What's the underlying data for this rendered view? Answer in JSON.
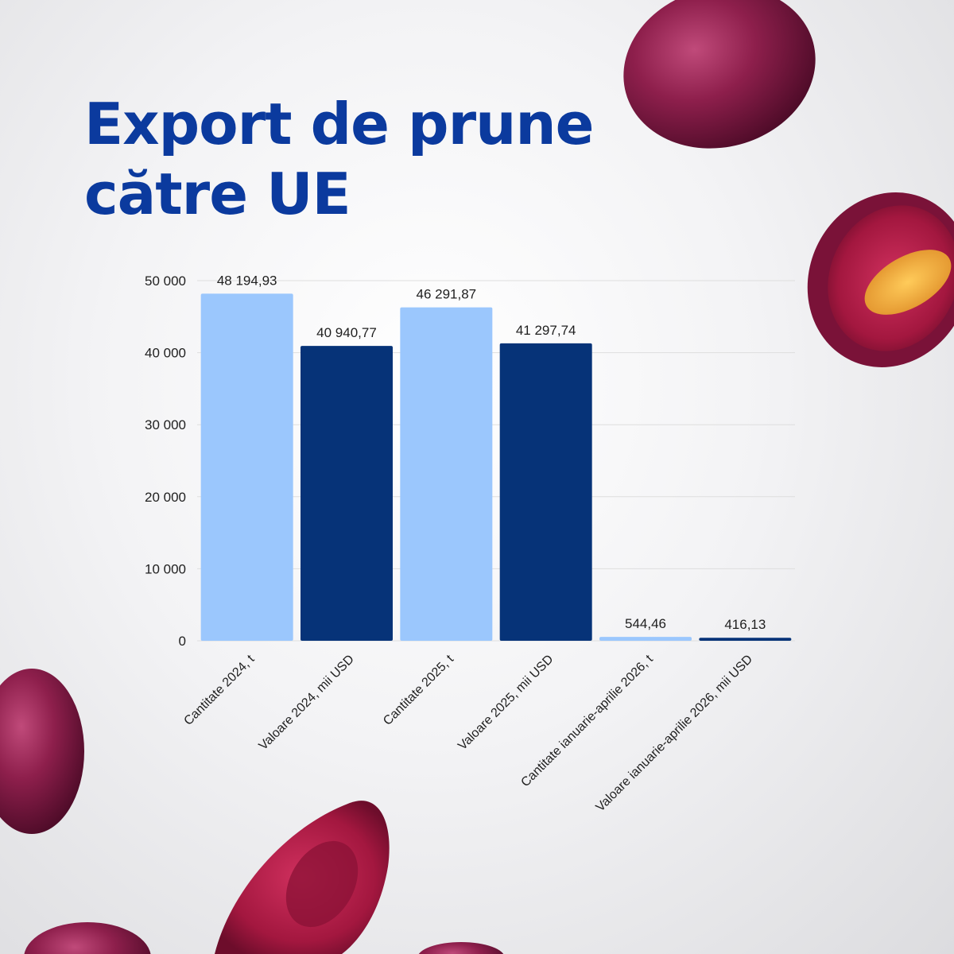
{
  "page": {
    "title_line1": "Export de prune",
    "title_line2": "către UE"
  },
  "colors": {
    "title": "#0b3a9e",
    "cantitate": "#9bc7fd",
    "valoare": "#063378",
    "grid": "#dedede",
    "text": "#1f1f1f"
  },
  "chart_data": {
    "type": "bar",
    "title": "Export de prune către UE",
    "categories": [
      "Cantitate 2024, t",
      "Valoare 2024, mii USD",
      "Cantitate 2025, t",
      "Valoare 2025, mii USD",
      "Cantitate ianuarie-aprilie 2026, t",
      "Valoare ianuarie-aprilie 2026, mii USD"
    ],
    "values": [
      48194.93,
      40940.77,
      46291.87,
      41297.74,
      544.46,
      416.13
    ],
    "value_labels": [
      "48 194,93",
      "40 940,77",
      "46 291,87",
      "41 297,74",
      "544,46",
      "416,13"
    ],
    "bar_colors": [
      "cantitate",
      "valoare",
      "cantitate",
      "valoare",
      "cantitate",
      "valoare"
    ],
    "ylim": [
      0,
      50000
    ],
    "y_ticks": [
      0,
      10000,
      20000,
      30000,
      40000,
      50000
    ],
    "y_tick_labels": [
      "0",
      "10 000",
      "20 000",
      "30 000",
      "40 000",
      "50 000"
    ],
    "grid": true,
    "legend": "none",
    "xlabel": "",
    "ylabel": ""
  },
  "decorations": {
    "images": [
      "plum-top-right",
      "plum-half-right",
      "plum-left",
      "plum-half-bottom",
      "plum-bottom-left",
      "plum-bottom-center"
    ]
  }
}
